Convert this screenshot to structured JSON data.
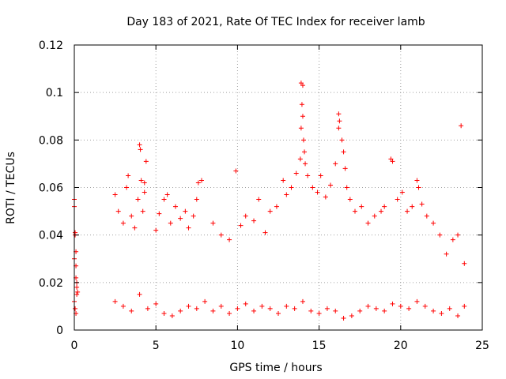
{
  "chart_data": {
    "type": "scatter",
    "title": "Day 183 of 2021, Rate Of TEC Index for receiver lamb",
    "xlabel": "GPS time / hours",
    "ylabel": "ROTI / TECUs",
    "xlim": [
      0,
      25
    ],
    "ylim": [
      0,
      0.12
    ],
    "xticks": [
      0,
      5,
      10,
      15,
      20,
      25
    ],
    "yticks": [
      0,
      0.02,
      0.04,
      0.06,
      0.08,
      0.1,
      0.12
    ],
    "xtick_labels": [
      "0",
      "5",
      "10",
      "15",
      "20",
      "25"
    ],
    "ytick_labels": [
      "0",
      "0.02",
      "0.04",
      "0.06",
      "0.08",
      "0.1",
      "0.12"
    ],
    "grid": true,
    "marker": "plus",
    "color": "#ff0000",
    "series": [
      {
        "points": [
          [
            0.0,
            0.055
          ],
          [
            0.0,
            0.052
          ],
          [
            0.05,
            0.041
          ],
          [
            0.05,
            0.04
          ],
          [
            0.1,
            0.033
          ],
          [
            0.1,
            0.027
          ],
          [
            0.1,
            0.022
          ],
          [
            0.15,
            0.018
          ],
          [
            0.15,
            0.015
          ],
          [
            0.0,
            0.012
          ],
          [
            0.05,
            0.009
          ],
          [
            0.1,
            0.007
          ],
          [
            0.2,
            0.016
          ],
          [
            0.15,
            0.02
          ],
          [
            0.0,
            0.03
          ],
          [
            2.5,
            0.057
          ],
          [
            2.7,
            0.05
          ],
          [
            3.0,
            0.045
          ],
          [
            3.2,
            0.06
          ],
          [
            3.3,
            0.065
          ],
          [
            3.5,
            0.048
          ],
          [
            3.7,
            0.043
          ],
          [
            3.9,
            0.055
          ],
          [
            4.0,
            0.078
          ],
          [
            4.05,
            0.076
          ],
          [
            4.1,
            0.063
          ],
          [
            4.2,
            0.05
          ],
          [
            4.3,
            0.058
          ],
          [
            4.4,
            0.071
          ],
          [
            4.3,
            0.062
          ],
          [
            5.0,
            0.042
          ],
          [
            5.2,
            0.049
          ],
          [
            5.5,
            0.055
          ],
          [
            5.7,
            0.057
          ],
          [
            5.9,
            0.045
          ],
          [
            6.2,
            0.052
          ],
          [
            6.5,
            0.047
          ],
          [
            6.8,
            0.05
          ],
          [
            7.0,
            0.043
          ],
          [
            7.3,
            0.048
          ],
          [
            7.6,
            0.062
          ],
          [
            7.8,
            0.063
          ],
          [
            7.5,
            0.055
          ],
          [
            8.5,
            0.045
          ],
          [
            9.0,
            0.04
          ],
          [
            9.5,
            0.038
          ],
          [
            9.9,
            0.067
          ],
          [
            10.2,
            0.044
          ],
          [
            10.5,
            0.048
          ],
          [
            11.0,
            0.046
          ],
          [
            11.3,
            0.055
          ],
          [
            11.7,
            0.041
          ],
          [
            12.0,
            0.05
          ],
          [
            12.4,
            0.052
          ],
          [
            12.8,
            0.063
          ],
          [
            13.0,
            0.057
          ],
          [
            13.3,
            0.06
          ],
          [
            13.6,
            0.066
          ],
          [
            13.9,
            0.104
          ],
          [
            14.0,
            0.103
          ],
          [
            13.95,
            0.095
          ],
          [
            14.0,
            0.09
          ],
          [
            13.9,
            0.085
          ],
          [
            14.05,
            0.08
          ],
          [
            14.1,
            0.075
          ],
          [
            14.15,
            0.07
          ],
          [
            13.85,
            0.072
          ],
          [
            14.3,
            0.065
          ],
          [
            14.6,
            0.06
          ],
          [
            14.9,
            0.058
          ],
          [
            15.1,
            0.065
          ],
          [
            15.4,
            0.056
          ],
          [
            15.7,
            0.061
          ],
          [
            16.0,
            0.07
          ],
          [
            16.2,
            0.091
          ],
          [
            16.25,
            0.088
          ],
          [
            16.2,
            0.085
          ],
          [
            16.4,
            0.08
          ],
          [
            16.5,
            0.075
          ],
          [
            16.6,
            0.068
          ],
          [
            16.7,
            0.06
          ],
          [
            16.9,
            0.055
          ],
          [
            17.2,
            0.05
          ],
          [
            17.6,
            0.052
          ],
          [
            18.0,
            0.045
          ],
          [
            18.4,
            0.048
          ],
          [
            18.8,
            0.05
          ],
          [
            19.0,
            0.052
          ],
          [
            19.4,
            0.072
          ],
          [
            19.5,
            0.071
          ],
          [
            19.8,
            0.055
          ],
          [
            20.1,
            0.058
          ],
          [
            20.4,
            0.05
          ],
          [
            20.7,
            0.052
          ],
          [
            21.0,
            0.063
          ],
          [
            21.1,
            0.06
          ],
          [
            21.3,
            0.053
          ],
          [
            21.6,
            0.048
          ],
          [
            22.0,
            0.045
          ],
          [
            22.4,
            0.04
          ],
          [
            22.8,
            0.032
          ],
          [
            23.2,
            0.038
          ],
          [
            23.5,
            0.04
          ],
          [
            23.7,
            0.086
          ],
          [
            23.9,
            0.028
          ],
          [
            2.5,
            0.012
          ],
          [
            3.0,
            0.01
          ],
          [
            3.5,
            0.008
          ],
          [
            4.0,
            0.015
          ],
          [
            4.5,
            0.009
          ],
          [
            5.0,
            0.011
          ],
          [
            5.5,
            0.007
          ],
          [
            6.0,
            0.006
          ],
          [
            6.5,
            0.008
          ],
          [
            7.0,
            0.01
          ],
          [
            7.5,
            0.009
          ],
          [
            8.0,
            0.012
          ],
          [
            8.5,
            0.008
          ],
          [
            9.0,
            0.01
          ],
          [
            9.5,
            0.007
          ],
          [
            10.0,
            0.009
          ],
          [
            10.5,
            0.011
          ],
          [
            11.0,
            0.008
          ],
          [
            11.5,
            0.01
          ],
          [
            12.0,
            0.009
          ],
          [
            12.5,
            0.007
          ],
          [
            13.0,
            0.01
          ],
          [
            13.5,
            0.009
          ],
          [
            14.0,
            0.012
          ],
          [
            14.5,
            0.008
          ],
          [
            15.0,
            0.007
          ],
          [
            15.5,
            0.009
          ],
          [
            16.0,
            0.008
          ],
          [
            16.5,
            0.005
          ],
          [
            17.0,
            0.006
          ],
          [
            17.5,
            0.008
          ],
          [
            18.0,
            0.01
          ],
          [
            18.5,
            0.009
          ],
          [
            19.0,
            0.008
          ],
          [
            19.5,
            0.011
          ],
          [
            20.0,
            0.01
          ],
          [
            20.5,
            0.009
          ],
          [
            21.0,
            0.012
          ],
          [
            21.5,
            0.01
          ],
          [
            22.0,
            0.008
          ],
          [
            22.5,
            0.007
          ],
          [
            23.0,
            0.009
          ],
          [
            23.5,
            0.006
          ],
          [
            23.9,
            0.01
          ]
        ]
      }
    ]
  }
}
